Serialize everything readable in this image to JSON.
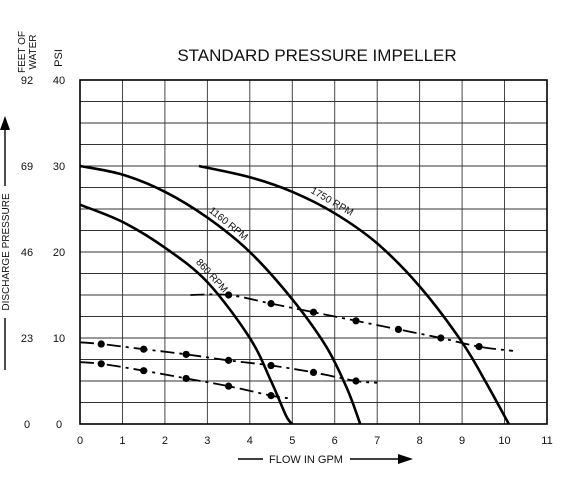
{
  "chart_data": {
    "type": "line",
    "title": "STANDARD PRESSURE IMPELLER",
    "xlabel": "FLOW IN GPM",
    "ylabel": "DISCHARGE PRESSURE",
    "y_axis_headers": {
      "feet": "FEET OF WATER",
      "psi": "PSI"
    },
    "xlim": [
      0,
      11
    ],
    "ylim": [
      0,
      40
    ],
    "x_ticks": [
      "0",
      "1",
      "2",
      "3",
      "4",
      "5",
      "6",
      "7",
      "8",
      "9",
      "10",
      "11"
    ],
    "psi_ticks": [
      {
        "value": 0,
        "label": "0"
      },
      {
        "value": 10,
        "label": "10"
      },
      {
        "value": 20,
        "label": "20"
      },
      {
        "value": 30,
        "label": "30"
      },
      {
        "value": 40,
        "label": "40"
      }
    ],
    "feet_ticks": [
      {
        "value": 0,
        "label": "0"
      },
      {
        "value": 10,
        "label": "23"
      },
      {
        "value": 20,
        "label": "46"
      },
      {
        "value": 30,
        "label": "69"
      },
      {
        "value": 40,
        "label": "92"
      }
    ],
    "grid": true,
    "pump_curves": [
      {
        "name": "860 RPM",
        "x": [
          0,
          1,
          2,
          3,
          4,
          4.5,
          4.85,
          5.0
        ],
        "y": [
          25.5,
          23.5,
          20.5,
          16.5,
          10,
          5,
          1,
          0
        ]
      },
      {
        "name": "1160 RPM",
        "x": [
          0,
          1,
          2,
          3,
          4,
          5,
          5.8,
          6.3,
          6.6
        ],
        "y": [
          30,
          29,
          27,
          24,
          20,
          14.5,
          9,
          4,
          0
        ]
      },
      {
        "name": "1750 RPM",
        "x": [
          2.8,
          4,
          5,
          6,
          7,
          8,
          9,
          9.6,
          10.1
        ],
        "y": [
          30,
          28.7,
          27,
          24.5,
          21,
          16,
          9.5,
          4.5,
          0
        ]
      }
    ],
    "system_curves": [
      {
        "x": [
          2.6,
          3.5,
          4.5,
          5.5,
          6.5,
          7.5,
          8.5,
          9.4,
          10.2
        ],
        "y": [
          15,
          15,
          14,
          13,
          12,
          11,
          10,
          9,
          8.5
        ],
        "markers": [
          3.5,
          4.5,
          5.5,
          6.5,
          7.5,
          8.5,
          9.4
        ]
      },
      {
        "x": [
          0,
          0.5,
          1.5,
          2.5,
          3.5,
          4.5,
          5.5,
          6.5,
          7.0
        ],
        "y": [
          9.5,
          9.3,
          8.7,
          8.1,
          7.4,
          6.8,
          6.0,
          5.0,
          4.8
        ],
        "markers": [
          0.5,
          1.5,
          2.5,
          3.5,
          4.5,
          5.5,
          6.5
        ]
      },
      {
        "x": [
          0,
          0.5,
          1.5,
          2.5,
          3.5,
          4.5,
          4.9
        ],
        "y": [
          7.2,
          7.0,
          6.2,
          5.3,
          4.4,
          3.3,
          3.0
        ],
        "markers": [
          0.5,
          1.5,
          2.5,
          3.5,
          4.5
        ]
      }
    ]
  }
}
